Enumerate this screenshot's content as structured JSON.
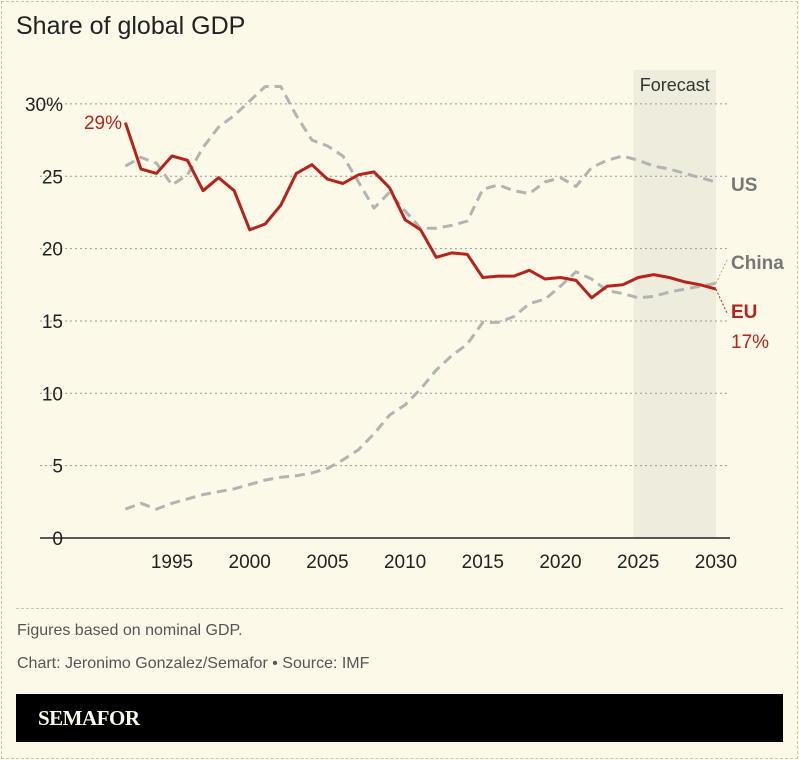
{
  "chart_data": {
    "type": "line",
    "title": "Share of global GDP",
    "xlabel": "",
    "ylabel": "",
    "xlim": [
      1992,
      2030
    ],
    "ylim": [
      0,
      30
    ],
    "x_ticks": [
      1995,
      2000,
      2005,
      2010,
      2015,
      2020,
      2025,
      2030
    ],
    "y_ticks": [
      {
        "v": 0,
        "label": "0"
      },
      {
        "v": 5,
        "label": "5"
      },
      {
        "v": 10,
        "label": "10"
      },
      {
        "v": 15,
        "label": "15"
      },
      {
        "v": 20,
        "label": "20"
      },
      {
        "v": 25,
        "label": "25"
      },
      {
        "v": 30,
        "label": "30%"
      }
    ],
    "grid": true,
    "forecast": {
      "label": "Forecast",
      "from": 2024.7,
      "to": 2030
    },
    "x": [
      1992,
      1993,
      1994,
      1995,
      1996,
      1997,
      1998,
      1999,
      2000,
      2001,
      2002,
      2003,
      2004,
      2005,
      2006,
      2007,
      2008,
      2009,
      2010,
      2011,
      2012,
      2013,
      2014,
      2015,
      2016,
      2017,
      2018,
      2019,
      2020,
      2021,
      2022,
      2023,
      2024,
      2025,
      2026,
      2027,
      2028,
      2029,
      2030
    ],
    "series": [
      {
        "name": "US",
        "color": "#b3b3b0",
        "style": "dashed",
        "values": [
          25.7,
          26.3,
          25.9,
          24.4,
          25.1,
          27.0,
          28.4,
          29.2,
          30.2,
          31.2,
          31.2,
          29.2,
          27.5,
          27.1,
          26.4,
          24.6,
          22.8,
          23.9,
          22.6,
          21.4,
          21.4,
          21.6,
          21.9,
          24.1,
          24.4,
          24.0,
          23.8,
          24.6,
          24.9,
          24.3,
          25.6,
          26.1,
          26.4,
          26.1,
          25.7,
          25.5,
          25.2,
          24.9,
          24.6
        ]
      },
      {
        "name": "China",
        "color": "#b3b3b0",
        "style": "dashed",
        "values": [
          2.0,
          2.4,
          2.0,
          2.4,
          2.7,
          3.0,
          3.2,
          3.4,
          3.7,
          4.0,
          4.2,
          4.3,
          4.5,
          4.8,
          5.4,
          6.1,
          7.2,
          8.5,
          9.2,
          10.3,
          11.6,
          12.6,
          13.4,
          14.9,
          14.9,
          15.3,
          16.2,
          16.5,
          17.4,
          18.4,
          17.9,
          17.1,
          16.9,
          16.6,
          16.7,
          17.0,
          17.2,
          17.4,
          17.6
        ]
      },
      {
        "name": "EU",
        "color": "#b5241b",
        "style": "solid",
        "start_label": "29%",
        "end_label": "17%",
        "values": [
          28.7,
          25.5,
          25.2,
          26.4,
          26.1,
          24.0,
          24.9,
          24.0,
          21.3,
          21.7,
          23.0,
          25.2,
          25.8,
          24.8,
          24.5,
          25.1,
          25.3,
          24.2,
          22.0,
          21.3,
          19.4,
          19.7,
          19.6,
          18.0,
          18.1,
          18.1,
          18.5,
          17.9,
          18.0,
          17.8,
          16.6,
          17.4,
          17.5,
          18.0,
          18.2,
          18.0,
          17.7,
          17.5,
          17.2
        ]
      }
    ]
  },
  "notes": {
    "line1": "Figures based on nominal GDP.",
    "line2": "Chart: Jeronimo Gonzalez/Semafor • Source: IMF"
  },
  "logo": "SEMAFOR"
}
